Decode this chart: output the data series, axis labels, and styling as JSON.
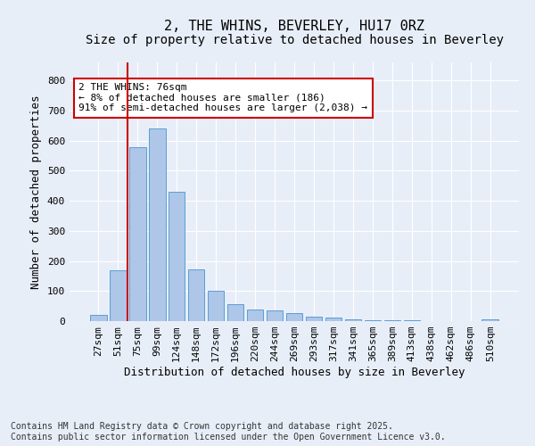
{
  "title1": "2, THE WHINS, BEVERLEY, HU17 0RZ",
  "title2": "Size of property relative to detached houses in Beverley",
  "xlabel": "Distribution of detached houses by size in Beverley",
  "ylabel": "Number of detached properties",
  "bar_labels": [
    "27sqm",
    "51sqm",
    "75sqm",
    "99sqm",
    "124sqm",
    "148sqm",
    "172sqm",
    "196sqm",
    "220sqm",
    "244sqm",
    "269sqm",
    "293sqm",
    "317sqm",
    "341sqm",
    "365sqm",
    "389sqm",
    "413sqm",
    "438sqm",
    "462sqm",
    "486sqm",
    "510sqm"
  ],
  "bar_values": [
    20,
    170,
    578,
    640,
    430,
    172,
    101,
    55,
    40,
    35,
    28,
    15,
    12,
    5,
    3,
    2,
    2,
    1,
    1,
    1,
    7
  ],
  "bar_color": "#aec6e8",
  "bar_edge_color": "#5a9fd4",
  "vline_index": 2,
  "vline_color": "#cc0000",
  "annotation_text": "2 THE WHINS: 76sqm\n← 8% of detached houses are smaller (186)\n91% of semi-detached houses are larger (2,038) →",
  "annotation_box_color": "#cc0000",
  "annotation_fill": "#ffffff",
  "ylim": [
    0,
    860
  ],
  "yticks": [
    0,
    100,
    200,
    300,
    400,
    500,
    600,
    700,
    800
  ],
  "bg_color": "#e8eef8",
  "plot_bg_color": "#e8eef8",
  "footer1": "Contains HM Land Registry data © Crown copyright and database right 2025.",
  "footer2": "Contains public sector information licensed under the Open Government Licence v3.0.",
  "title_fontsize": 11,
  "subtitle_fontsize": 10,
  "axis_label_fontsize": 9,
  "tick_fontsize": 8,
  "annotation_fontsize": 8,
  "footer_fontsize": 7
}
